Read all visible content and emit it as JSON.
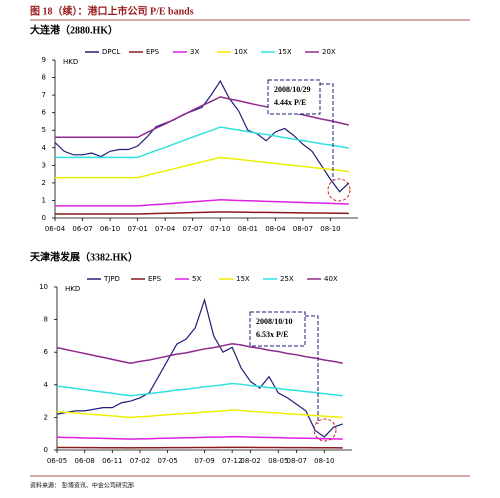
{
  "figure_title": "图 18（续）：港口上市公司 P/E bands",
  "source": "资料来源：  彭博资讯、中金公司研究部",
  "chart_data": [
    {
      "type": "line",
      "title": "大连港（2880.HK）",
      "ylabel": "HKD",
      "x": [
        0,
        1,
        2,
        3,
        4,
        5,
        6,
        7,
        8,
        9,
        10,
        11,
        12,
        13,
        14,
        15,
        16,
        17,
        18,
        19,
        20,
        21,
        22,
        23,
        24,
        25,
        26,
        27,
        28,
        29,
        30,
        31,
        32
      ],
      "xlim": [
        0,
        33
      ],
      "xticks": [
        {
          "value": 0,
          "label": "06-04"
        },
        {
          "value": 3,
          "label": "06-07"
        },
        {
          "value": 6,
          "label": "06-10"
        },
        {
          "value": 9,
          "label": "07-01"
        },
        {
          "value": 12,
          "label": "07-04"
        },
        {
          "value": 15,
          "label": "07-07"
        },
        {
          "value": 18,
          "label": "07-10"
        },
        {
          "value": 21,
          "label": "08-01"
        },
        {
          "value": 24,
          "label": "08-04"
        },
        {
          "value": 27,
          "label": "08-07"
        },
        {
          "value": 30,
          "label": "08-10"
        }
      ],
      "ylim": [
        0,
        9
      ],
      "yticks": [
        0,
        1,
        2,
        3,
        4,
        5,
        6,
        7,
        8,
        9
      ],
      "annotation": [
        "2008/10/29",
        "4.44x P/E"
      ],
      "series": [
        {
          "name": "DPCL",
          "color": "#1f1f7a",
          "values": [
            4.3,
            3.8,
            3.6,
            3.6,
            3.7,
            3.5,
            3.8,
            3.9,
            3.9,
            4.1,
            4.6,
            5.2,
            5.4,
            5.6,
            5.9,
            6.1,
            6.3,
            7.0,
            7.8,
            6.8,
            6.1,
            5.0,
            4.8,
            4.4,
            4.9,
            5.1,
            4.7,
            4.2,
            3.8,
            3.0,
            2.2,
            1.5,
            2.0
          ]
        },
        {
          "name": "EPS",
          "color": "#8b1a1a",
          "values": [
            0.23,
            0.23,
            0.23,
            0.23,
            0.23,
            0.23,
            0.23,
            0.23,
            0.23,
            0.23,
            0.243,
            0.256,
            0.268,
            0.281,
            0.294,
            0.307,
            0.32,
            0.332,
            0.345,
            0.339,
            0.334,
            0.328,
            0.322,
            0.317,
            0.311,
            0.305,
            0.299,
            0.294,
            0.288,
            0.282,
            0.277,
            0.271,
            0.265
          ]
        },
        {
          "name": "3X",
          "color": "#e020e0",
          "values": [
            0.69,
            0.69,
            0.69,
            0.69,
            0.69,
            0.69,
            0.69,
            0.69,
            0.69,
            0.69,
            0.73,
            0.77,
            0.8,
            0.84,
            0.88,
            0.92,
            0.96,
            1.0,
            1.04,
            1.02,
            1.0,
            0.98,
            0.97,
            0.95,
            0.93,
            0.92,
            0.9,
            0.88,
            0.86,
            0.85,
            0.83,
            0.81,
            0.8
          ]
        },
        {
          "name": "10X",
          "color": "#eeee00",
          "values": [
            2.3,
            2.3,
            2.3,
            2.3,
            2.3,
            2.3,
            2.3,
            2.3,
            2.3,
            2.3,
            2.43,
            2.56,
            2.68,
            2.81,
            2.94,
            3.07,
            3.2,
            3.32,
            3.45,
            3.39,
            3.34,
            3.28,
            3.22,
            3.17,
            3.11,
            3.05,
            2.99,
            2.94,
            2.88,
            2.82,
            2.77,
            2.71,
            2.65
          ]
        },
        {
          "name": "15X",
          "color": "#30e0e0",
          "values": [
            3.45,
            3.45,
            3.45,
            3.45,
            3.45,
            3.45,
            3.45,
            3.45,
            3.45,
            3.45,
            3.65,
            3.84,
            4.02,
            4.22,
            4.41,
            4.61,
            4.8,
            4.98,
            5.18,
            5.09,
            5.01,
            4.92,
            4.83,
            4.76,
            4.67,
            4.58,
            4.49,
            4.41,
            4.32,
            4.23,
            4.16,
            4.07,
            3.98
          ]
        },
        {
          "name": "20X",
          "color": "#8e2a8e",
          "values": [
            4.6,
            4.6,
            4.6,
            4.6,
            4.6,
            4.6,
            4.6,
            4.6,
            4.6,
            4.6,
            4.86,
            5.12,
            5.36,
            5.62,
            5.88,
            6.14,
            6.4,
            6.64,
            6.9,
            6.78,
            6.68,
            6.56,
            6.44,
            6.34,
            6.22,
            6.1,
            5.98,
            5.88,
            5.76,
            5.64,
            5.54,
            5.42,
            5.3
          ]
        }
      ]
    },
    {
      "type": "line",
      "title": "天津港发展（3382.HK）",
      "ylabel": "HKD",
      "x": [
        0,
        1,
        2,
        3,
        4,
        5,
        6,
        7,
        8,
        9,
        10,
        11,
        12,
        13,
        14,
        15,
        16,
        17,
        18,
        19,
        20,
        21,
        22,
        23,
        24,
        25,
        26,
        27,
        28,
        29,
        30,
        31
      ],
      "xlim": [
        0,
        32
      ],
      "xticks": [
        {
          "value": 0,
          "label": "06-05"
        },
        {
          "value": 3,
          "label": "06-08"
        },
        {
          "value": 6,
          "label": "06-11"
        },
        {
          "value": 9,
          "label": "07-02"
        },
        {
          "value": 12,
          "label": "07-05"
        },
        {
          "value": 16,
          "label": "07-09"
        },
        {
          "value": 19,
          "label": "07-12"
        },
        {
          "value": 21,
          "label": "08-02"
        },
        {
          "value": 24,
          "label": "08-05"
        },
        {
          "value": 26,
          "label": "08-07"
        },
        {
          "value": 29,
          "label": "08-10"
        }
      ],
      "ylim": [
        0,
        10
      ],
      "yticks": [
        0,
        2,
        4,
        6,
        8,
        10
      ],
      "annotation": [
        "2008/10/10",
        "6.53x P/E"
      ],
      "series": [
        {
          "name": "TJPD",
          "color": "#1f1f7a",
          "values": [
            2.2,
            2.3,
            2.4,
            2.4,
            2.5,
            2.6,
            2.6,
            2.9,
            3.0,
            3.2,
            3.5,
            4.5,
            5.5,
            6.5,
            6.8,
            7.5,
            9.2,
            7.0,
            6.0,
            6.3,
            5.0,
            4.2,
            3.8,
            4.5,
            3.5,
            3.2,
            2.8,
            2.4,
            1.2,
            0.8,
            1.4,
            1.6
          ]
        },
        {
          "name": "EPS",
          "color": "#8b1a1a",
          "values": [
            0.157,
            0.154,
            0.151,
            0.148,
            0.145,
            0.142,
            0.139,
            0.136,
            0.133,
            0.136,
            0.138,
            0.141,
            0.144,
            0.147,
            0.149,
            0.152,
            0.155,
            0.157,
            0.16,
            0.163,
            0.161,
            0.158,
            0.156,
            0.153,
            0.151,
            0.148,
            0.146,
            0.143,
            0.141,
            0.138,
            0.136,
            0.133
          ]
        },
        {
          "name": "5X",
          "color": "#e020e0",
          "values": [
            0.79,
            0.77,
            0.76,
            0.74,
            0.73,
            0.71,
            0.7,
            0.68,
            0.67,
            0.68,
            0.69,
            0.71,
            0.72,
            0.74,
            0.75,
            0.76,
            0.78,
            0.79,
            0.8,
            0.82,
            0.81,
            0.79,
            0.78,
            0.77,
            0.76,
            0.74,
            0.73,
            0.72,
            0.71,
            0.69,
            0.68,
            0.67
          ]
        },
        {
          "name": "15X",
          "color": "#eeee00",
          "values": [
            2.36,
            2.31,
            2.27,
            2.22,
            2.18,
            2.13,
            2.09,
            2.04,
            2.0,
            2.04,
            2.07,
            2.12,
            2.16,
            2.21,
            2.24,
            2.28,
            2.33,
            2.36,
            2.4,
            2.45,
            2.42,
            2.37,
            2.34,
            2.3,
            2.27,
            2.22,
            2.19,
            2.15,
            2.12,
            2.07,
            2.04,
            2.0
          ]
        },
        {
          "name": "25X",
          "color": "#30e0e0",
          "values": [
            3.93,
            3.85,
            3.78,
            3.7,
            3.63,
            3.55,
            3.48,
            3.4,
            3.33,
            3.4,
            3.45,
            3.53,
            3.6,
            3.68,
            3.73,
            3.8,
            3.88,
            3.93,
            4.0,
            4.08,
            4.03,
            3.95,
            3.9,
            3.83,
            3.78,
            3.7,
            3.65,
            3.58,
            3.53,
            3.45,
            3.4,
            3.33
          ]
        },
        {
          "name": "40X",
          "color": "#8e2a8e",
          "values": [
            6.28,
            6.16,
            6.04,
            5.92,
            5.8,
            5.68,
            5.56,
            5.44,
            5.32,
            5.44,
            5.52,
            5.64,
            5.76,
            5.88,
            5.96,
            6.08,
            6.2,
            6.28,
            6.4,
            6.52,
            6.44,
            6.32,
            6.24,
            6.12,
            6.04,
            5.92,
            5.84,
            5.72,
            5.64,
            5.52,
            5.44,
            5.32
          ]
        }
      ]
    }
  ]
}
